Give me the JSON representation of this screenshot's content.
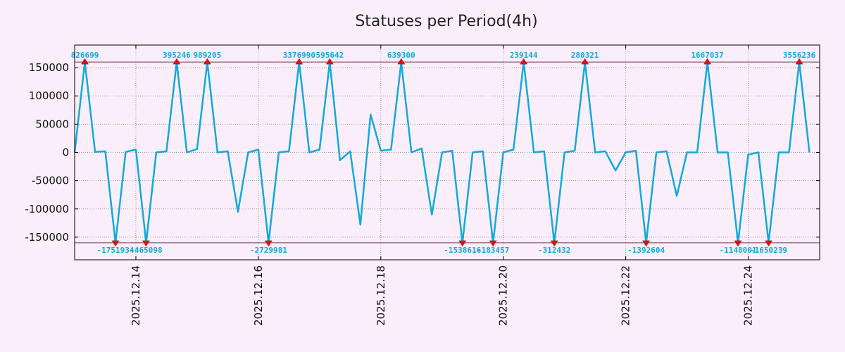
{
  "chart_data": {
    "type": "line",
    "title": "Statuses per Period(4h)",
    "xlabel": "",
    "ylabel": "",
    "xlim": [
      "2025.12.13 00:00",
      "2025.12.25 04:00"
    ],
    "ylim": [
      -190000,
      190000
    ],
    "x_tick_labels": [
      "2025.12.14",
      "2025.12.16",
      "2025.12.18",
      "2025.12.20",
      "2025.12.22",
      "2025.12.24"
    ],
    "y_tick_labels": [
      "150000",
      "100000",
      "50000",
      "0",
      "-50000",
      "-100000",
      "-150000"
    ],
    "grid": true,
    "clip_max": 160000,
    "clip_min": -160000,
    "series": [
      {
        "color": "#11aadd",
        "points": [
          [
            "2025.12.13 00:00",
            0
          ],
          [
            "2025.12.13 04:00",
            160000
          ],
          [
            "2025.12.13 08:00",
            1000
          ],
          [
            "2025.12.13 12:00",
            2000
          ],
          [
            "2025.12.13 16:00",
            -160000
          ],
          [
            "2025.12.13 20:00",
            1000
          ],
          [
            "2025.12.14 00:00",
            5000
          ],
          [
            "2025.12.14 04:00",
            -160000
          ],
          [
            "2025.12.14 08:00",
            0
          ],
          [
            "2025.12.14 12:00",
            2000
          ],
          [
            "2025.12.14 16:00",
            160000
          ],
          [
            "2025.12.14 20:00",
            0
          ],
          [
            "2025.12.15 00:00",
            6000
          ],
          [
            "2025.12.15 04:00",
            160000
          ],
          [
            "2025.12.15 08:00",
            0
          ],
          [
            "2025.12.15 12:00",
            2000
          ],
          [
            "2025.12.15 16:00",
            -105000
          ],
          [
            "2025.12.15 20:00",
            0
          ],
          [
            "2025.12.16 00:00",
            5000
          ],
          [
            "2025.12.16 04:00",
            -160000
          ],
          [
            "2025.12.16 08:00",
            0
          ],
          [
            "2025.12.16 12:00",
            2000
          ],
          [
            "2025.12.16 16:00",
            160000
          ],
          [
            "2025.12.16 20:00",
            0
          ],
          [
            "2025.12.17 00:00",
            5000
          ],
          [
            "2025.12.17 04:00",
            160000
          ],
          [
            "2025.12.17 08:00",
            -14000
          ],
          [
            "2025.12.17 12:00",
            2000
          ],
          [
            "2025.12.17 16:00",
            -128000
          ],
          [
            "2025.12.17 20:00",
            67000
          ],
          [
            "2025.12.18 00:00",
            3000
          ],
          [
            "2025.12.18 04:00",
            5000
          ],
          [
            "2025.12.18 08:00",
            160000
          ],
          [
            "2025.12.18 12:00",
            0
          ],
          [
            "2025.12.18 16:00",
            7000
          ],
          [
            "2025.12.18 20:00",
            -110000
          ],
          [
            "2025.12.19 00:00",
            0
          ],
          [
            "2025.12.19 04:00",
            3000
          ],
          [
            "2025.12.19 08:00",
            -160000
          ],
          [
            "2025.12.19 12:00",
            0
          ],
          [
            "2025.12.19 16:00",
            2000
          ],
          [
            "2025.12.19 20:00",
            -160000
          ],
          [
            "2025.12.20 00:00",
            0
          ],
          [
            "2025.12.20 04:00",
            5000
          ],
          [
            "2025.12.20 08:00",
            160000
          ],
          [
            "2025.12.20 12:00",
            0
          ],
          [
            "2025.12.20 16:00",
            2000
          ],
          [
            "2025.12.20 20:00",
            -160000
          ],
          [
            "2025.12.21 00:00",
            0
          ],
          [
            "2025.12.21 04:00",
            3000
          ],
          [
            "2025.12.21 08:00",
            160000
          ],
          [
            "2025.12.21 12:00",
            0
          ],
          [
            "2025.12.21 16:00",
            2000
          ],
          [
            "2025.12.21 20:00",
            -32000
          ],
          [
            "2025.12.22 00:00",
            0
          ],
          [
            "2025.12.22 04:00",
            3000
          ],
          [
            "2025.12.22 08:00",
            -160000
          ],
          [
            "2025.12.22 12:00",
            0
          ],
          [
            "2025.12.22 16:00",
            2000
          ],
          [
            "2025.12.22 20:00",
            -77000
          ],
          [
            "2025.12.23 00:00",
            0
          ],
          [
            "2025.12.23 04:00",
            0
          ],
          [
            "2025.12.23 08:00",
            160000
          ],
          [
            "2025.12.23 12:00",
            0
          ],
          [
            "2025.12.23 16:00",
            0
          ],
          [
            "2025.12.23 20:00",
            -160000
          ],
          [
            "2025.12.24 00:00",
            -4000
          ],
          [
            "2025.12.24 04:00",
            0
          ],
          [
            "2025.12.24 08:00",
            -160000
          ],
          [
            "2025.12.24 12:00",
            0
          ],
          [
            "2025.12.24 16:00",
            0
          ],
          [
            "2025.12.24 20:00",
            160000
          ],
          [
            "2025.12.25 00:00",
            0
          ]
        ]
      }
    ],
    "peak_labels": [
      {
        "x": "2025.12.13 04:00",
        "label": "826699",
        "dir": "up"
      },
      {
        "x": "2025.12.13 16:00",
        "label": "-1751934",
        "dir": "down"
      },
      {
        "x": "2025.12.14 04:00",
        "label": "-465098",
        "dir": "down"
      },
      {
        "x": "2025.12.14 16:00",
        "label": "395246",
        "dir": "up"
      },
      {
        "x": "2025.12.15 04:00",
        "label": "989205",
        "dir": "up"
      },
      {
        "x": "2025.12.16 04:00",
        "label": "-2729981",
        "dir": "down"
      },
      {
        "x": "2025.12.16 16:00",
        "label": "3376990",
        "dir": "up"
      },
      {
        "x": "2025.12.17 04:00",
        "label": "595642",
        "dir": "up"
      },
      {
        "x": "2025.12.18 08:00",
        "label": "639300",
        "dir": "up"
      },
      {
        "x": "2025.12.19 08:00",
        "label": "-1538616",
        "dir": "down"
      },
      {
        "x": "2025.12.19 20:00",
        "label": "-183457",
        "dir": "down"
      },
      {
        "x": "2025.12.20 08:00",
        "label": "239144",
        "dir": "up"
      },
      {
        "x": "2025.12.20 20:00",
        "label": "-312432",
        "dir": "down"
      },
      {
        "x": "2025.12.21 08:00",
        "label": "280321",
        "dir": "up"
      },
      {
        "x": "2025.12.22 08:00",
        "label": "-1392604",
        "dir": "down"
      },
      {
        "x": "2025.12.23 08:00",
        "label": "1667037",
        "dir": "up"
      },
      {
        "x": "2025.12.23 20:00",
        "label": "-1148001",
        "dir": "down"
      },
      {
        "x": "2025.12.24 08:00",
        "label": "-1650239",
        "dir": "down"
      },
      {
        "x": "2025.12.24 20:00",
        "label": "3556236",
        "dir": "up"
      }
    ]
  },
  "colors": {
    "background": "#fbeefb",
    "line": "#11aadd",
    "marker": "#dd1111",
    "label": "#11aadd",
    "grid": "#999999",
    "clip_line": "#773355"
  }
}
